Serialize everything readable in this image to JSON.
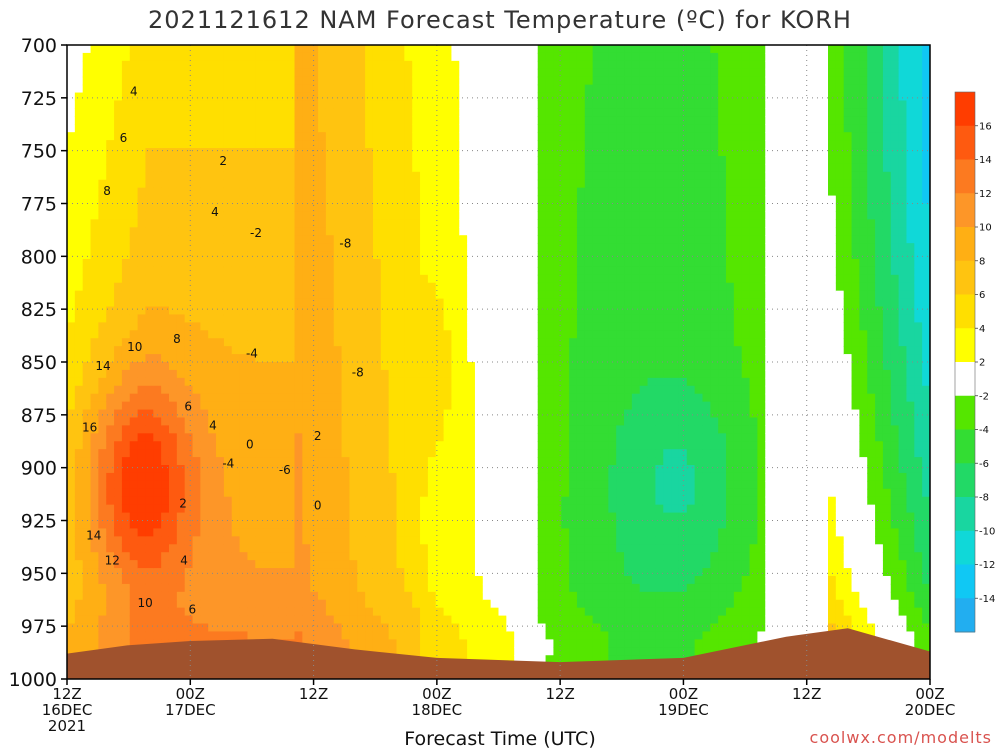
{
  "chart_data": {
    "type": "heatmap",
    "title": "2021121612 NAM Forecast Temperature (ºC) for KORH",
    "xlabel": "Forecast Time (UTC)",
    "ylabel": "",
    "credit": "coolwx.com/modelts",
    "y_axis": {
      "scale": "pressure (hPa), inverted",
      "ylim": [
        1000,
        700
      ],
      "ticks": [
        700,
        725,
        750,
        775,
        800,
        825,
        850,
        875,
        900,
        925,
        950,
        975,
        1000
      ]
    },
    "x_axis": {
      "xlim": [
        "2021-12-16 12Z",
        "2021-12-20 00Z"
      ],
      "ticks": [
        {
          "hour": 0,
          "line1": "12Z",
          "line2": "16DEC",
          "line3": "2021"
        },
        {
          "hour": 12,
          "line1": "00Z",
          "line2": "17DEC",
          "line3": ""
        },
        {
          "hour": 24,
          "line1": "12Z",
          "line2": "",
          "line3": ""
        },
        {
          "hour": 36,
          "line1": "00Z",
          "line2": "18DEC",
          "line3": ""
        },
        {
          "hour": 48,
          "line1": "12Z",
          "line2": "",
          "line3": ""
        },
        {
          "hour": 60,
          "line1": "00Z",
          "line2": "19DEC",
          "line3": ""
        },
        {
          "hour": 72,
          "line1": "12Z",
          "line2": "",
          "line3": ""
        },
        {
          "hour": 84,
          "line1": "00Z",
          "line2": "20DEC",
          "line3": ""
        }
      ]
    },
    "grid": true,
    "legend": {
      "placement": "right",
      "labels": [
        "16",
        "14",
        "12",
        "10",
        "8",
        "6",
        "4",
        "2",
        "-2",
        "-4",
        "-6",
        "-8",
        "-10",
        "-12",
        "-14"
      ],
      "bands": [
        {
          "min": 16,
          "max": 18,
          "color": "#ff3d00"
        },
        {
          "min": 14,
          "max": 16,
          "color": "#fe5a10"
        },
        {
          "min": 12,
          "max": 14,
          "color": "#fc7a20"
        },
        {
          "min": 10,
          "max": 12,
          "color": "#fd9628"
        },
        {
          "min": 8,
          "max": 10,
          "color": "#ffaf14"
        },
        {
          "min": 6,
          "max": 8,
          "color": "#ffc410"
        },
        {
          "min": 4,
          "max": 6,
          "color": "#ffdf00"
        },
        {
          "min": 2,
          "max": 4,
          "color": "#ffff00"
        },
        {
          "min": -2,
          "max": 2,
          "color": "#ffffff"
        },
        {
          "min": -4,
          "max": -2,
          "color": "#55e600"
        },
        {
          "min": -6,
          "max": -4,
          "color": "#33dd33"
        },
        {
          "min": -8,
          "max": -6,
          "color": "#22d966"
        },
        {
          "min": -10,
          "max": -8,
          "color": "#19d6a0"
        },
        {
          "min": -12,
          "max": -10,
          "color": "#10d8d8"
        },
        {
          "min": -14,
          "max": -12,
          "color": "#10c8f4"
        },
        {
          "min": -16,
          "max": -14,
          "color": "#22aef0"
        }
      ]
    },
    "cross_section_samples": [
      {
        "hour": 6,
        "values": [
          {
            "p": 700,
            "t": 3
          },
          {
            "p": 775,
            "t": 8
          },
          {
            "p": 850,
            "t": 13
          },
          {
            "p": 900,
            "t": 17
          },
          {
            "p": 950,
            "t": 12
          },
          {
            "p": 975,
            "t": 10
          }
        ]
      },
      {
        "hour": 24,
        "values": [
          {
            "p": 700,
            "t": 2
          },
          {
            "p": 775,
            "t": 5
          },
          {
            "p": 850,
            "t": 8
          },
          {
            "p": 900,
            "t": 7
          },
          {
            "p": 950,
            "t": 8
          },
          {
            "p": 975,
            "t": 9
          }
        ]
      },
      {
        "hour": 36,
        "values": [
          {
            "p": 700,
            "t": -1
          },
          {
            "p": 775,
            "t": 3
          },
          {
            "p": 850,
            "t": 3
          },
          {
            "p": 900,
            "t": 0
          },
          {
            "p": 950,
            "t": 1
          },
          {
            "p": 975,
            "t": 2
          }
        ]
      },
      {
        "hour": 48,
        "values": [
          {
            "p": 700,
            "t": -4
          },
          {
            "p": 775,
            "t": -1
          },
          {
            "p": 850,
            "t": 1
          },
          {
            "p": 900,
            "t": -3
          },
          {
            "p": 950,
            "t": -3
          },
          {
            "p": 975,
            "t": 0
          }
        ]
      },
      {
        "hour": 60,
        "values": [
          {
            "p": 700,
            "t": -4
          },
          {
            "p": 775,
            "t": -2
          },
          {
            "p": 850,
            "t": -4
          },
          {
            "p": 900,
            "t": -6
          },
          {
            "p": 950,
            "t": -5
          },
          {
            "p": 975,
            "t": -2
          }
        ]
      },
      {
        "hour": 72,
        "values": [
          {
            "p": 700,
            "t": -3
          },
          {
            "p": 775,
            "t": -2
          },
          {
            "p": 850,
            "t": 2
          },
          {
            "p": 900,
            "t": -1
          },
          {
            "p": 950,
            "t": 0
          },
          {
            "p": 975,
            "t": 1
          }
        ]
      },
      {
        "hour": 82,
        "values": [
          {
            "p": 700,
            "t": -13
          },
          {
            "p": 775,
            "t": -10
          },
          {
            "p": 850,
            "t": -9
          },
          {
            "p": 900,
            "t": -7
          },
          {
            "p": 950,
            "t": -4
          },
          {
            "p": 975,
            "t": -1
          }
        ]
      }
    ],
    "contour_labels": [
      {
        "text": "4",
        "hour": 6.5,
        "p": 722
      },
      {
        "text": "6",
        "hour": 5.5,
        "p": 744
      },
      {
        "text": "8",
        "hour": 3.9,
        "p": 769
      },
      {
        "text": "10",
        "hour": 6.6,
        "p": 843
      },
      {
        "text": "14",
        "hour": 3.5,
        "p": 852
      },
      {
        "text": "16",
        "hour": 2.2,
        "p": 881
      },
      {
        "text": "14",
        "hour": 2.6,
        "p": 932
      },
      {
        "text": "12",
        "hour": 4.4,
        "p": 944
      },
      {
        "text": "10",
        "hour": 7.6,
        "p": 964
      },
      {
        "text": "8",
        "hour": 10.7,
        "p": 839
      },
      {
        "text": "6",
        "hour": 11.8,
        "p": 871
      },
      {
        "text": "4",
        "hour": 14.2,
        "p": 880
      },
      {
        "text": "2",
        "hour": 11.3,
        "p": 917
      },
      {
        "text": "4",
        "hour": 11.4,
        "p": 944
      },
      {
        "text": "6",
        "hour": 12.2,
        "p": 967
      },
      {
        "text": "4",
        "hour": 14.4,
        "p": 779
      },
      {
        "text": "2",
        "hour": 15.2,
        "p": 755
      },
      {
        "text": "-2",
        "hour": 18.4,
        "p": 789
      },
      {
        "text": "-4",
        "hour": 18.0,
        "p": 846
      },
      {
        "text": "0",
        "hour": 17.8,
        "p": 889
      },
      {
        "text": "-4",
        "hour": 15.7,
        "p": 898
      },
      {
        "text": "-6",
        "hour": 21.2,
        "p": 901
      },
      {
        "text": "2",
        "hour": 24.4,
        "p": 885
      },
      {
        "text": "0",
        "hour": 24.4,
        "p": 918
      },
      {
        "text": "-8",
        "hour": 27.1,
        "p": 794
      },
      {
        "text": "-8",
        "hour": 28.3,
        "p": 855
      }
    ]
  }
}
